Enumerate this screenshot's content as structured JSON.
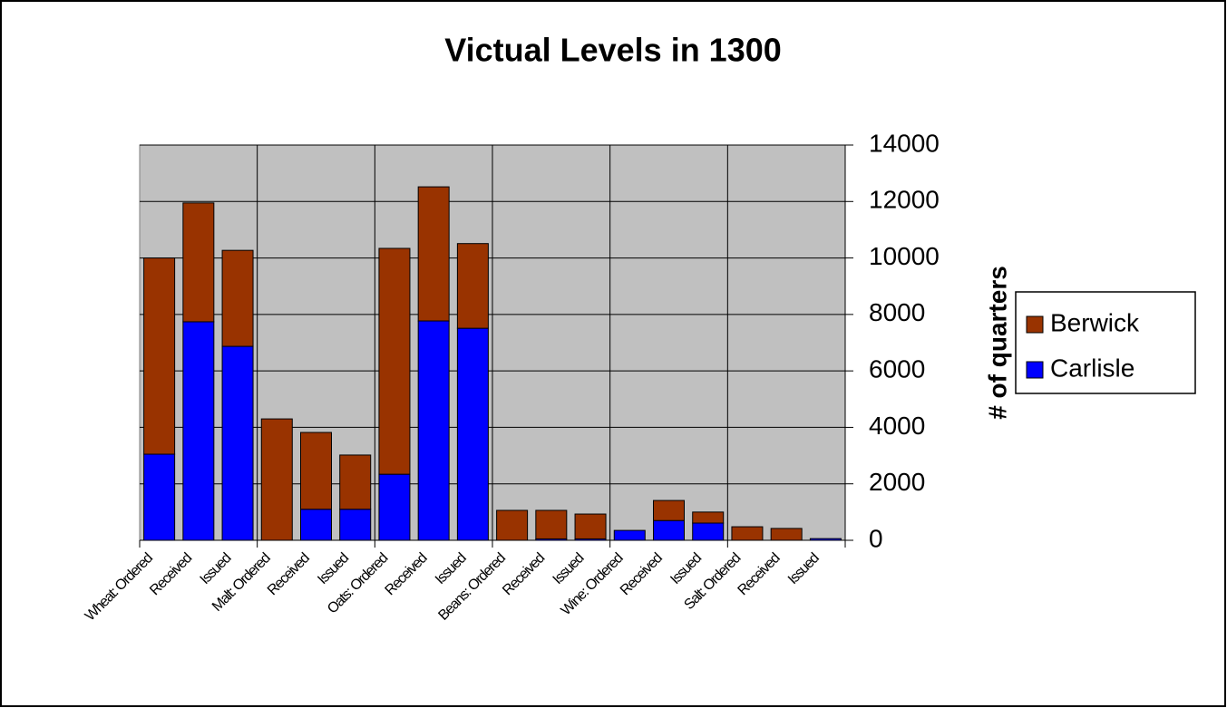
{
  "chart_data": {
    "type": "stacked_bar",
    "title": "Victual Levels in 1300",
    "y_label": "# of quarters",
    "categories": [
      "Wheat: Ordered",
      "Received",
      "Issued",
      "Malt: Ordered",
      "Received",
      "Issued",
      "Oats: Ordered",
      "Received",
      "Issued",
      "Beans: Ordered",
      "Received",
      "Issued",
      "Wine: Ordered",
      "Received",
      "Issued",
      "Salt: Ordered",
      "Received",
      "Issued"
    ],
    "series": [
      {
        "name": "Carlisle",
        "color": "#0000ff",
        "values": [
          3050,
          7740,
          6870,
          0,
          1100,
          1100,
          2340,
          7770,
          7510,
          0,
          50,
          50,
          350,
          700,
          610,
          0,
          0,
          60
        ]
      },
      {
        "name": "Berwick",
        "color": "#993300",
        "values": [
          6950,
          4210,
          3400,
          4300,
          2720,
          1920,
          8000,
          4750,
          3000,
          1060,
          1010,
          880,
          0,
          710,
          390,
          480,
          420,
          0
        ]
      }
    ],
    "ylim": [
      0,
      14000
    ],
    "yticks": [
      0,
      2000,
      4000,
      6000,
      8000,
      10000,
      12000,
      14000
    ],
    "grid": true,
    "legend": "right"
  }
}
